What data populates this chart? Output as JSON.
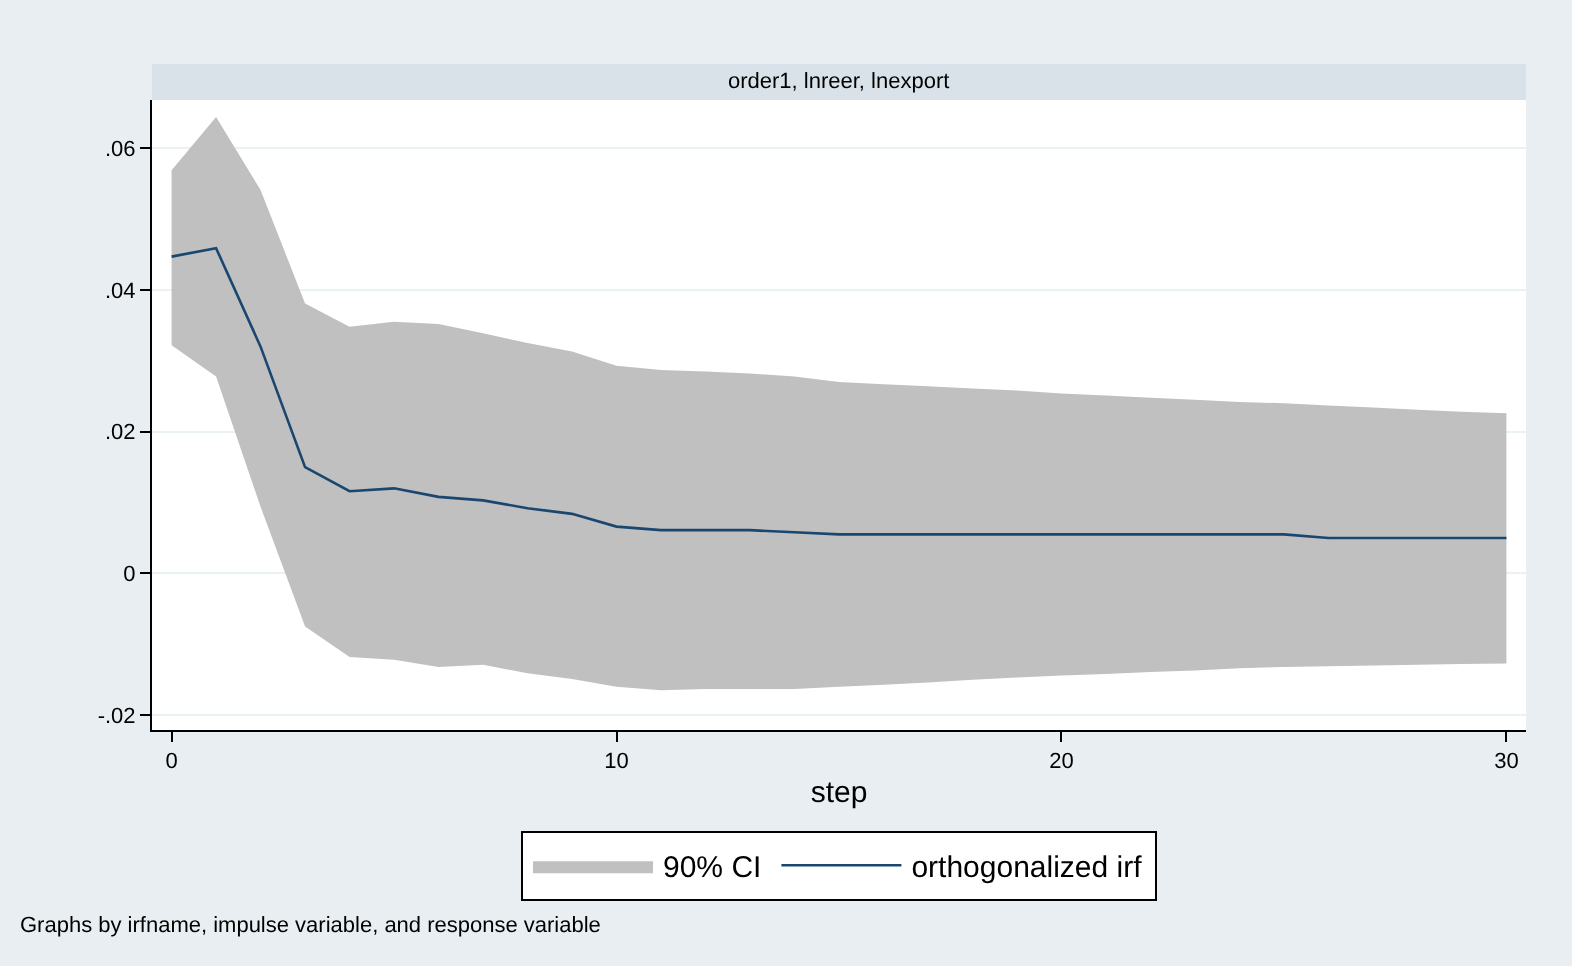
{
  "chart_data": {
    "type": "line",
    "title": "order1, lnreer, lnexport",
    "xlabel": "step",
    "legend_title": "90% CI",
    "x": [
      0,
      1,
      2,
      3,
      4,
      5,
      6,
      7,
      8,
      9,
      10,
      11,
      12,
      13,
      14,
      15,
      16,
      17,
      18,
      19,
      20,
      21,
      22,
      23,
      24,
      25,
      26,
      27,
      28,
      29,
      30
    ],
    "series": [
      {
        "name": "orthogonalized irf",
        "color": "#1a476f",
        "values": [
          0.0447,
          0.0459,
          0.032,
          0.015,
          0.0116,
          0.012,
          0.0108,
          0.0103,
          0.0092,
          0.0084,
          0.0066,
          0.0061,
          0.0061,
          0.0061,
          0.0058,
          0.0055,
          0.0055,
          0.0055,
          0.0055,
          0.0055,
          0.0055,
          0.0055,
          0.0055,
          0.0055,
          0.0055,
          0.0055,
          0.005,
          0.005,
          0.005,
          0.005,
          0.005
        ],
        "upper": [
          0.0569,
          0.0644,
          0.0541,
          0.0381,
          0.0348,
          0.0355,
          0.0352,
          0.0339,
          0.0325,
          0.0313,
          0.0293,
          0.0287,
          0.0285,
          0.0282,
          0.0278,
          0.027,
          0.0267,
          0.0264,
          0.0261,
          0.0258,
          0.0254,
          0.0251,
          0.0248,
          0.0245,
          0.0242,
          0.024,
          0.0237,
          0.0234,
          0.0231,
          0.0228,
          0.0226
        ],
        "lower": [
          0.0322,
          0.0278,
          0.0094,
          -0.0075,
          -0.0118,
          -0.0122,
          -0.0132,
          -0.0129,
          -0.0141,
          -0.0149,
          -0.016,
          -0.0165,
          -0.0163,
          -0.0163,
          -0.0163,
          -0.016,
          -0.0157,
          -0.0154,
          -0.015,
          -0.0147,
          -0.0144,
          -0.0142,
          -0.0139,
          -0.0137,
          -0.0134,
          -0.0132,
          -0.0131,
          -0.013,
          -0.0129,
          -0.0128,
          -0.0127
        ]
      }
    ],
    "xlim": [
      -0.44,
      30.44
    ],
    "xticks": [
      0,
      10,
      20,
      30
    ],
    "ylim": [
      -0.0221,
      0.0668
    ],
    "yticks": [
      {
        "value": -0.02,
        "label": "-.02"
      },
      0,
      {
        "value": 0.02,
        "label": ".02"
      },
      {
        "value": 0.04,
        "label": ".04"
      },
      {
        "value": 0.06,
        "label": ".06"
      }
    ],
    "grid": "y",
    "legend": "bottom",
    "marker": "none",
    "line_style": "solid",
    "annotations": [
      "Graphs by irfname, impulse variable, and response variable"
    ]
  }
}
